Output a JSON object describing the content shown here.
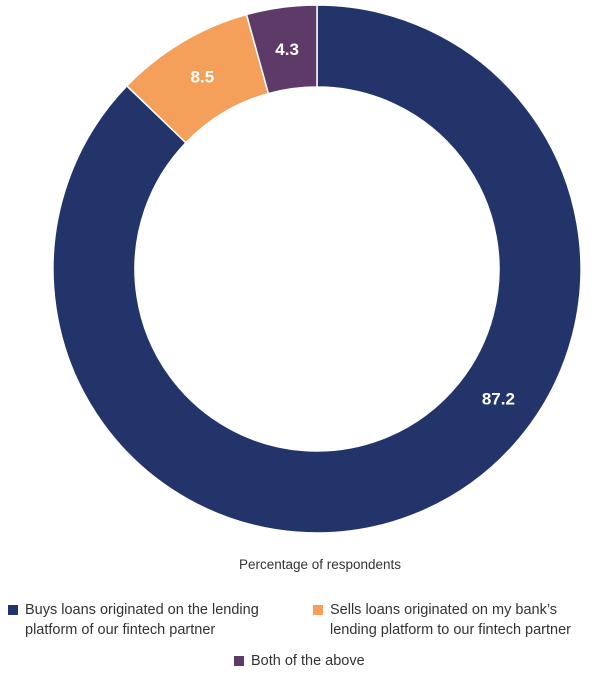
{
  "chart_data": {
    "type": "pie",
    "variant": "donut",
    "title": "",
    "caption": "Percentage of respondents",
    "series": [
      {
        "name": "Buys loans originated on the lending platform of our fintech partner",
        "value": 87.2,
        "label": "87.2",
        "color": "#23346a"
      },
      {
        "name": "Sells loans originated on my bank’s lending platform to our fintech partner",
        "value": 8.5,
        "label": "8.5",
        "color": "#f5a05a"
      },
      {
        "name": "Both of the above",
        "value": 4.3,
        "label": "4.3",
        "color": "#5e3a69"
      }
    ],
    "legend_position": "bottom"
  },
  "legend": {
    "items": [
      {
        "line1": "Buys loans originated on the lending",
        "line2": "platform of our fintech partner",
        "color": "#23346a"
      },
      {
        "line1": "Sells loans originated on my bank’s",
        "line2": "lending platform to our fintech partner",
        "color": "#f5a05a"
      },
      {
        "line1": "Both of the above",
        "line2": "",
        "color": "#5e3a69"
      }
    ]
  }
}
